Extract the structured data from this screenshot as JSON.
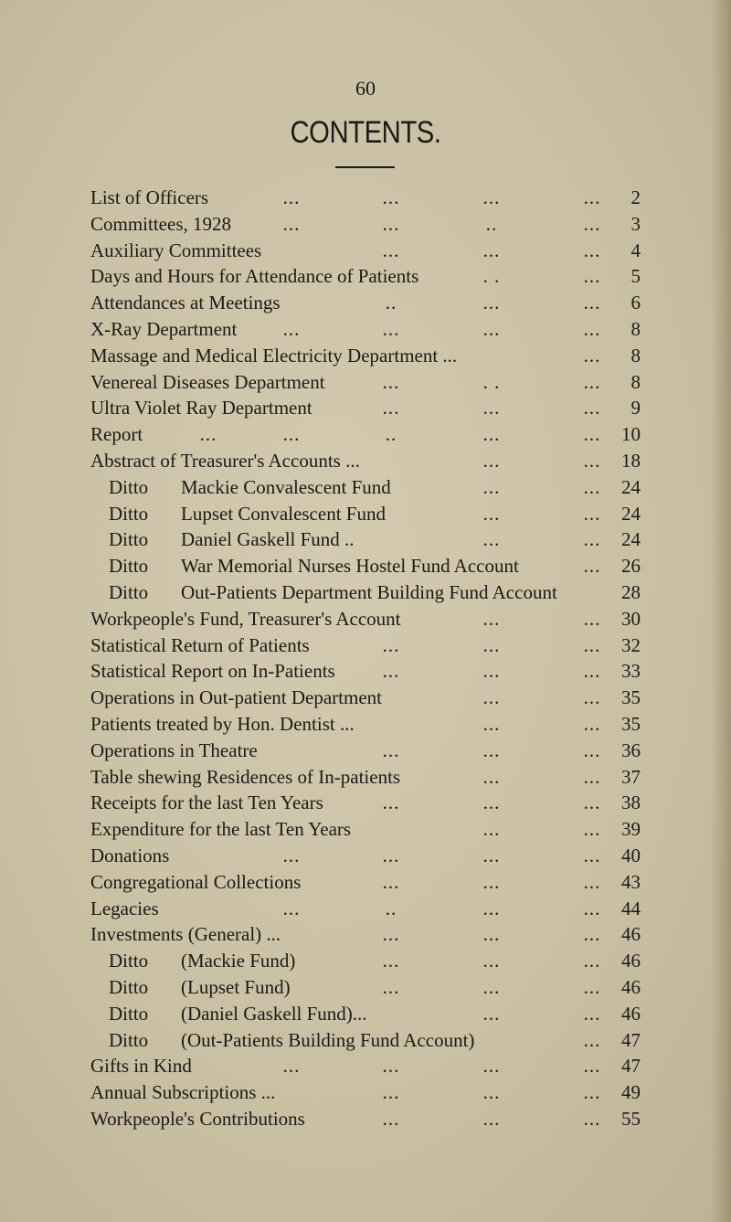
{
  "page_number": "60",
  "title": "CONTENTS.",
  "entries": [
    {
      "label": "List of Officers",
      "leaders": [
        null,
        "...",
        "...",
        "...",
        "..."
      ],
      "page": "2"
    },
    {
      "label": "Committees, 1928",
      "leaders": [
        null,
        "...",
        "...",
        "..",
        "..."
      ],
      "page": "3"
    },
    {
      "label": "Auxiliary Committees",
      "leaders": [
        null,
        null,
        "...",
        "...",
        "..."
      ],
      "page": "4"
    },
    {
      "label": "Days and Hours for Attendance of Patients",
      "leaders": [
        null,
        null,
        null,
        ". .",
        "..."
      ],
      "page": "5"
    },
    {
      "label": "Attendances at Meetings",
      "leaders": [
        null,
        null,
        "..",
        "...",
        "..."
      ],
      "page": "6"
    },
    {
      "label": "X-Ray Department",
      "leaders": [
        null,
        "...",
        "...",
        "...",
        "..."
      ],
      "page": "8"
    },
    {
      "label": "Massage and Medical Electricity Department ...",
      "leaders": [
        null,
        null,
        null,
        null,
        "..."
      ],
      "page": "8"
    },
    {
      "label": "Venereal Diseases Department",
      "leaders": [
        null,
        null,
        "...",
        ". .",
        "..."
      ],
      "page": "8"
    },
    {
      "label": "Ultra Violet Ray Department",
      "leaders": [
        null,
        null,
        "...",
        "...",
        "..."
      ],
      "page": "9"
    },
    {
      "label": "Report",
      "leaders": [
        "...",
        "...",
        "..",
        "...",
        "..."
      ],
      "page": "10"
    },
    {
      "label": "Abstract of Treasurer's Accounts ...",
      "leaders": [
        null,
        null,
        null,
        "...",
        "..."
      ],
      "page": "18"
    },
    {
      "ditto": "Ditto",
      "label": "Mackie Convalescent Fund",
      "leaders": [
        null,
        null,
        null,
        "...",
        "..."
      ],
      "page": "24"
    },
    {
      "ditto": "Ditto",
      "label": "Lupset Convalescent Fund",
      "leaders": [
        null,
        null,
        null,
        "...",
        "..."
      ],
      "page": "24"
    },
    {
      "ditto": "Ditto",
      "label": "Daniel Gaskell Fund ..",
      "leaders": [
        null,
        null,
        null,
        "...",
        "..."
      ],
      "page": "24"
    },
    {
      "ditto": "Ditto",
      "label": "War Memorial Nurses Hostel Fund Account",
      "leaders": [
        null,
        null,
        null,
        null,
        "..."
      ],
      "page": "26"
    },
    {
      "ditto": "Ditto",
      "label": "Out-Patients Department Building Fund Account",
      "leaders": [
        null,
        null,
        null,
        null,
        null
      ],
      "page": "28"
    },
    {
      "label": "Workpeople's Fund, Treasurer's Account",
      "leaders": [
        null,
        null,
        null,
        "...",
        "..."
      ],
      "page": "30"
    },
    {
      "label": "Statistical Return of Patients",
      "leaders": [
        null,
        null,
        "...",
        "...",
        "..."
      ],
      "page": "32"
    },
    {
      "label": "Statistical Report on In-Patients",
      "leaders": [
        null,
        null,
        "...",
        "...",
        "..."
      ],
      "page": "33"
    },
    {
      "label": "Operations in Out-patient Department",
      "leaders": [
        null,
        null,
        null,
        "...",
        "..."
      ],
      "page": "35"
    },
    {
      "label": "Patients treated by Hon. Dentist ...",
      "leaders": [
        null,
        null,
        null,
        "...",
        "..."
      ],
      "page": "35"
    },
    {
      "label": "Operations in Theatre",
      "leaders": [
        null,
        null,
        "...",
        "...",
        "..."
      ],
      "page": "36"
    },
    {
      "label": "Table shewing Residences of In-patients",
      "leaders": [
        null,
        null,
        null,
        "...",
        "..."
      ],
      "page": "37"
    },
    {
      "label": "Receipts for the last Ten Years",
      "leaders": [
        null,
        null,
        "...",
        "...",
        "..."
      ],
      "page": "38"
    },
    {
      "label": "Expenditure for the last Ten Years",
      "leaders": [
        null,
        null,
        null,
        "...",
        "..."
      ],
      "page": "39"
    },
    {
      "label": "Donations",
      "leaders": [
        null,
        "...",
        "...",
        "...",
        "..."
      ],
      "page": "40"
    },
    {
      "label": "Congregational Collections",
      "leaders": [
        null,
        null,
        "...",
        "...",
        "..."
      ],
      "page": "43"
    },
    {
      "label": "Legacies",
      "leaders": [
        null,
        "...",
        "..",
        "...",
        "..."
      ],
      "page": "44"
    },
    {
      "label": "Investments (General) ...",
      "leaders": [
        null,
        null,
        "...",
        "...",
        "..."
      ],
      "page": "46"
    },
    {
      "ditto": "Ditto",
      "label": "(Mackie Fund)",
      "leaders": [
        null,
        null,
        "...",
        "...",
        "..."
      ],
      "page": "46"
    },
    {
      "ditto": "Ditto",
      "label": "(Lupset Fund)",
      "leaders": [
        null,
        null,
        "...",
        "...",
        "..."
      ],
      "page": "46"
    },
    {
      "ditto": "Ditto",
      "label": "(Daniel Gaskell Fund)...",
      "leaders": [
        null,
        null,
        null,
        "...",
        "..."
      ],
      "page": "46"
    },
    {
      "ditto": "Ditto",
      "label": "(Out-Patients Building Fund Account)",
      "leaders": [
        null,
        null,
        null,
        null,
        "..."
      ],
      "page": "47"
    },
    {
      "label": "Gifts in Kind",
      "leaders": [
        null,
        "...",
        "...",
        "...",
        "..."
      ],
      "page": "47"
    },
    {
      "label": "Annual Subscriptions ...",
      "leaders": [
        null,
        null,
        "...",
        "...",
        "..."
      ],
      "page": "49"
    },
    {
      "label": "Workpeople's Contributions",
      "leaders": [
        null,
        null,
        "...",
        "...",
        "..."
      ],
      "page": "55"
    }
  ]
}
